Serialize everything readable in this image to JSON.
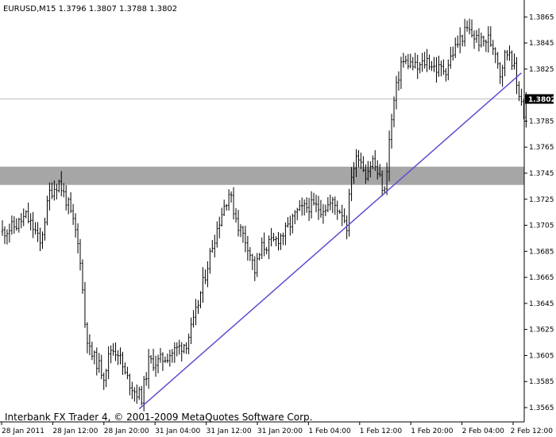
{
  "window": {
    "symbol_label": "EURUSD,M15  1.3796 1.3807 1.3788 1.3802",
    "footer": "Interbank FX Trader 4, © 2001-2009 MetaQuotes Software Corp."
  },
  "colors": {
    "background": "#ffffff",
    "bars": "#000000",
    "trendline": "#5a4fcf",
    "zone": "#a6a6a6",
    "price_line": "#c0c0c0",
    "price_tag": "#000000"
  },
  "chart_data": {
    "type": "ohlc",
    "symbol": "EURUSD",
    "timeframe": "M15",
    "ohlc_header": {
      "open": 1.3796,
      "high": 1.3807,
      "low": 1.3788,
      "close": 1.3802
    },
    "current_price": 1.3802,
    "current_price_label": "1.3802",
    "ylim": [
      1.3554,
      1.3878
    ],
    "yticks": [
      1.3565,
      1.3585,
      1.3605,
      1.3625,
      1.3645,
      1.3665,
      1.3685,
      1.3705,
      1.3725,
      1.3745,
      1.3765,
      1.3785,
      1.3825,
      1.3845,
      1.3865
    ],
    "ytick_labels": [
      "1.3565",
      "1.3585",
      "1.3605",
      "1.3625",
      "1.3645",
      "1.3665",
      "1.3685",
      "1.3705",
      "1.3725",
      "1.3745",
      "1.3765",
      "1.3785",
      "1.3825",
      "1.3845",
      "1.3865"
    ],
    "xticks": [
      "28 Jan 2011",
      "28 Jan 12:00",
      "28 Jan 20:00",
      "31 Jan 04:00",
      "31 Jan 12:00",
      "31 Jan 20:00",
      "1 Feb 04:00",
      "1 Feb 12:00",
      "1 Feb 20:00",
      "2 Feb 04:00",
      "2 Feb 12:00"
    ],
    "resistance_zone": [
      1.3736,
      1.375
    ],
    "trendline": {
      "from_bar": 58,
      "from_price": 1.3564,
      "to_bar": 220,
      "to_price": 1.3822
    },
    "price_path": [
      [
        0,
        1.37
      ],
      [
        6,
        1.3705
      ],
      [
        10,
        1.3712
      ],
      [
        14,
        1.37
      ],
      [
        16,
        1.369
      ],
      [
        20,
        1.373
      ],
      [
        24,
        1.3738
      ],
      [
        28,
        1.372
      ],
      [
        31,
        1.37
      ],
      [
        33,
        1.368
      ],
      [
        35,
        1.363
      ],
      [
        37,
        1.3608
      ],
      [
        40,
        1.36
      ],
      [
        43,
        1.359
      ],
      [
        46,
        1.361
      ],
      [
        49,
        1.3608
      ],
      [
        52,
        1.359
      ],
      [
        56,
        1.3578
      ],
      [
        59,
        1.3573
      ],
      [
        62,
        1.36
      ],
      [
        66,
        1.36
      ],
      [
        70,
        1.3605
      ],
      [
        74,
        1.361
      ],
      [
        78,
        1.3615
      ],
      [
        81,
        1.363
      ],
      [
        85,
        1.366
      ],
      [
        89,
        1.369
      ],
      [
        93,
        1.3715
      ],
      [
        96,
        1.373
      ],
      [
        100,
        1.3705
      ],
      [
        104,
        1.369
      ],
      [
        107,
        1.367
      ],
      [
        110,
        1.3688
      ],
      [
        115,
        1.3692
      ],
      [
        120,
        1.37
      ],
      [
        125,
        1.3715
      ],
      [
        130,
        1.372
      ],
      [
        135,
        1.3718
      ],
      [
        140,
        1.3722
      ],
      [
        144,
        1.3715
      ],
      [
        146,
        1.3705
      ],
      [
        148,
        1.3745
      ],
      [
        151,
        1.376
      ],
      [
        154,
        1.3745
      ],
      [
        157,
        1.3755
      ],
      [
        160,
        1.374
      ],
      [
        162,
        1.373
      ],
      [
        164,
        1.377
      ],
      [
        166,
        1.38
      ],
      [
        169,
        1.383
      ],
      [
        172,
        1.383
      ],
      [
        176,
        1.3825
      ],
      [
        180,
        1.3832
      ],
      [
        184,
        1.3825
      ],
      [
        188,
        1.3825
      ],
      [
        191,
        1.3838
      ],
      [
        194,
        1.3848
      ],
      [
        197,
        1.3855
      ],
      [
        200,
        1.385
      ],
      [
        203,
        1.3845
      ],
      [
        206,
        1.3848
      ],
      [
        209,
        1.384
      ],
      [
        211,
        1.3822
      ],
      [
        213,
        1.3835
      ],
      [
        215,
        1.384
      ],
      [
        217,
        1.3825
      ],
      [
        218,
        1.3812
      ],
      [
        220,
        1.3802
      ],
      [
        221,
        1.379
      ],
      [
        222,
        1.3802
      ]
    ]
  }
}
